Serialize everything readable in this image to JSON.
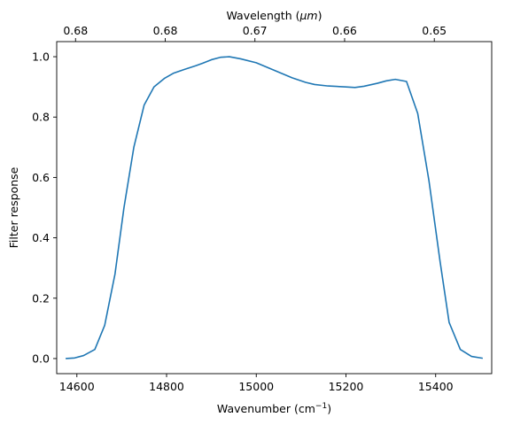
{
  "chart_data": {
    "type": "line",
    "title": "",
    "xlabel": "Wavenumber (cm",
    "xlabel_sup": "−1",
    "xlabel_close": ")",
    "ylabel": "Filter response",
    "top_xlabel": "Wavelength (",
    "top_xlabel_unit": "μm",
    "top_xlabel_close": ")",
    "xlim": [
      14555,
      15525
    ],
    "ylim": [
      -0.05,
      1.05
    ],
    "xticks": [
      14600,
      14800,
      15000,
      15200,
      15400
    ],
    "yticks": [
      0.0,
      0.2,
      0.4,
      0.6,
      0.8,
      1.0
    ],
    "ytick_labels": [
      "0.0",
      "0.2",
      "0.4",
      "0.6",
      "0.8",
      "1.0"
    ],
    "top_ticks_wavenumber": [
      14597,
      14797,
      14997,
      15197,
      15397
    ],
    "top_tick_labels": [
      "0.68",
      "0.68",
      "0.67",
      "0.66",
      "0.65"
    ],
    "grid": false,
    "color": "#1f77b4",
    "series": [
      {
        "x": [
          14575,
          14595,
          14615,
          14640,
          14662,
          14685,
          14705,
          14727,
          14750,
          14772,
          14795,
          14815,
          14840,
          14865,
          14880,
          14900,
          14920,
          14940,
          14965,
          15000,
          15040,
          15080,
          15110,
          15130,
          15160,
          15200,
          15220,
          15240,
          15270,
          15290,
          15310,
          15335,
          15360,
          15385,
          15410,
          15430,
          15455,
          15480,
          15505
        ],
        "y": [
          0.0,
          0.002,
          0.01,
          0.03,
          0.11,
          0.28,
          0.5,
          0.7,
          0.84,
          0.9,
          0.928,
          0.945,
          0.958,
          0.97,
          0.978,
          0.99,
          0.998,
          1.0,
          0.993,
          0.98,
          0.955,
          0.93,
          0.915,
          0.908,
          0.903,
          0.9,
          0.898,
          0.902,
          0.912,
          0.92,
          0.925,
          0.918,
          0.812,
          0.59,
          0.32,
          0.12,
          0.03,
          0.007,
          0.001
        ]
      }
    ]
  }
}
